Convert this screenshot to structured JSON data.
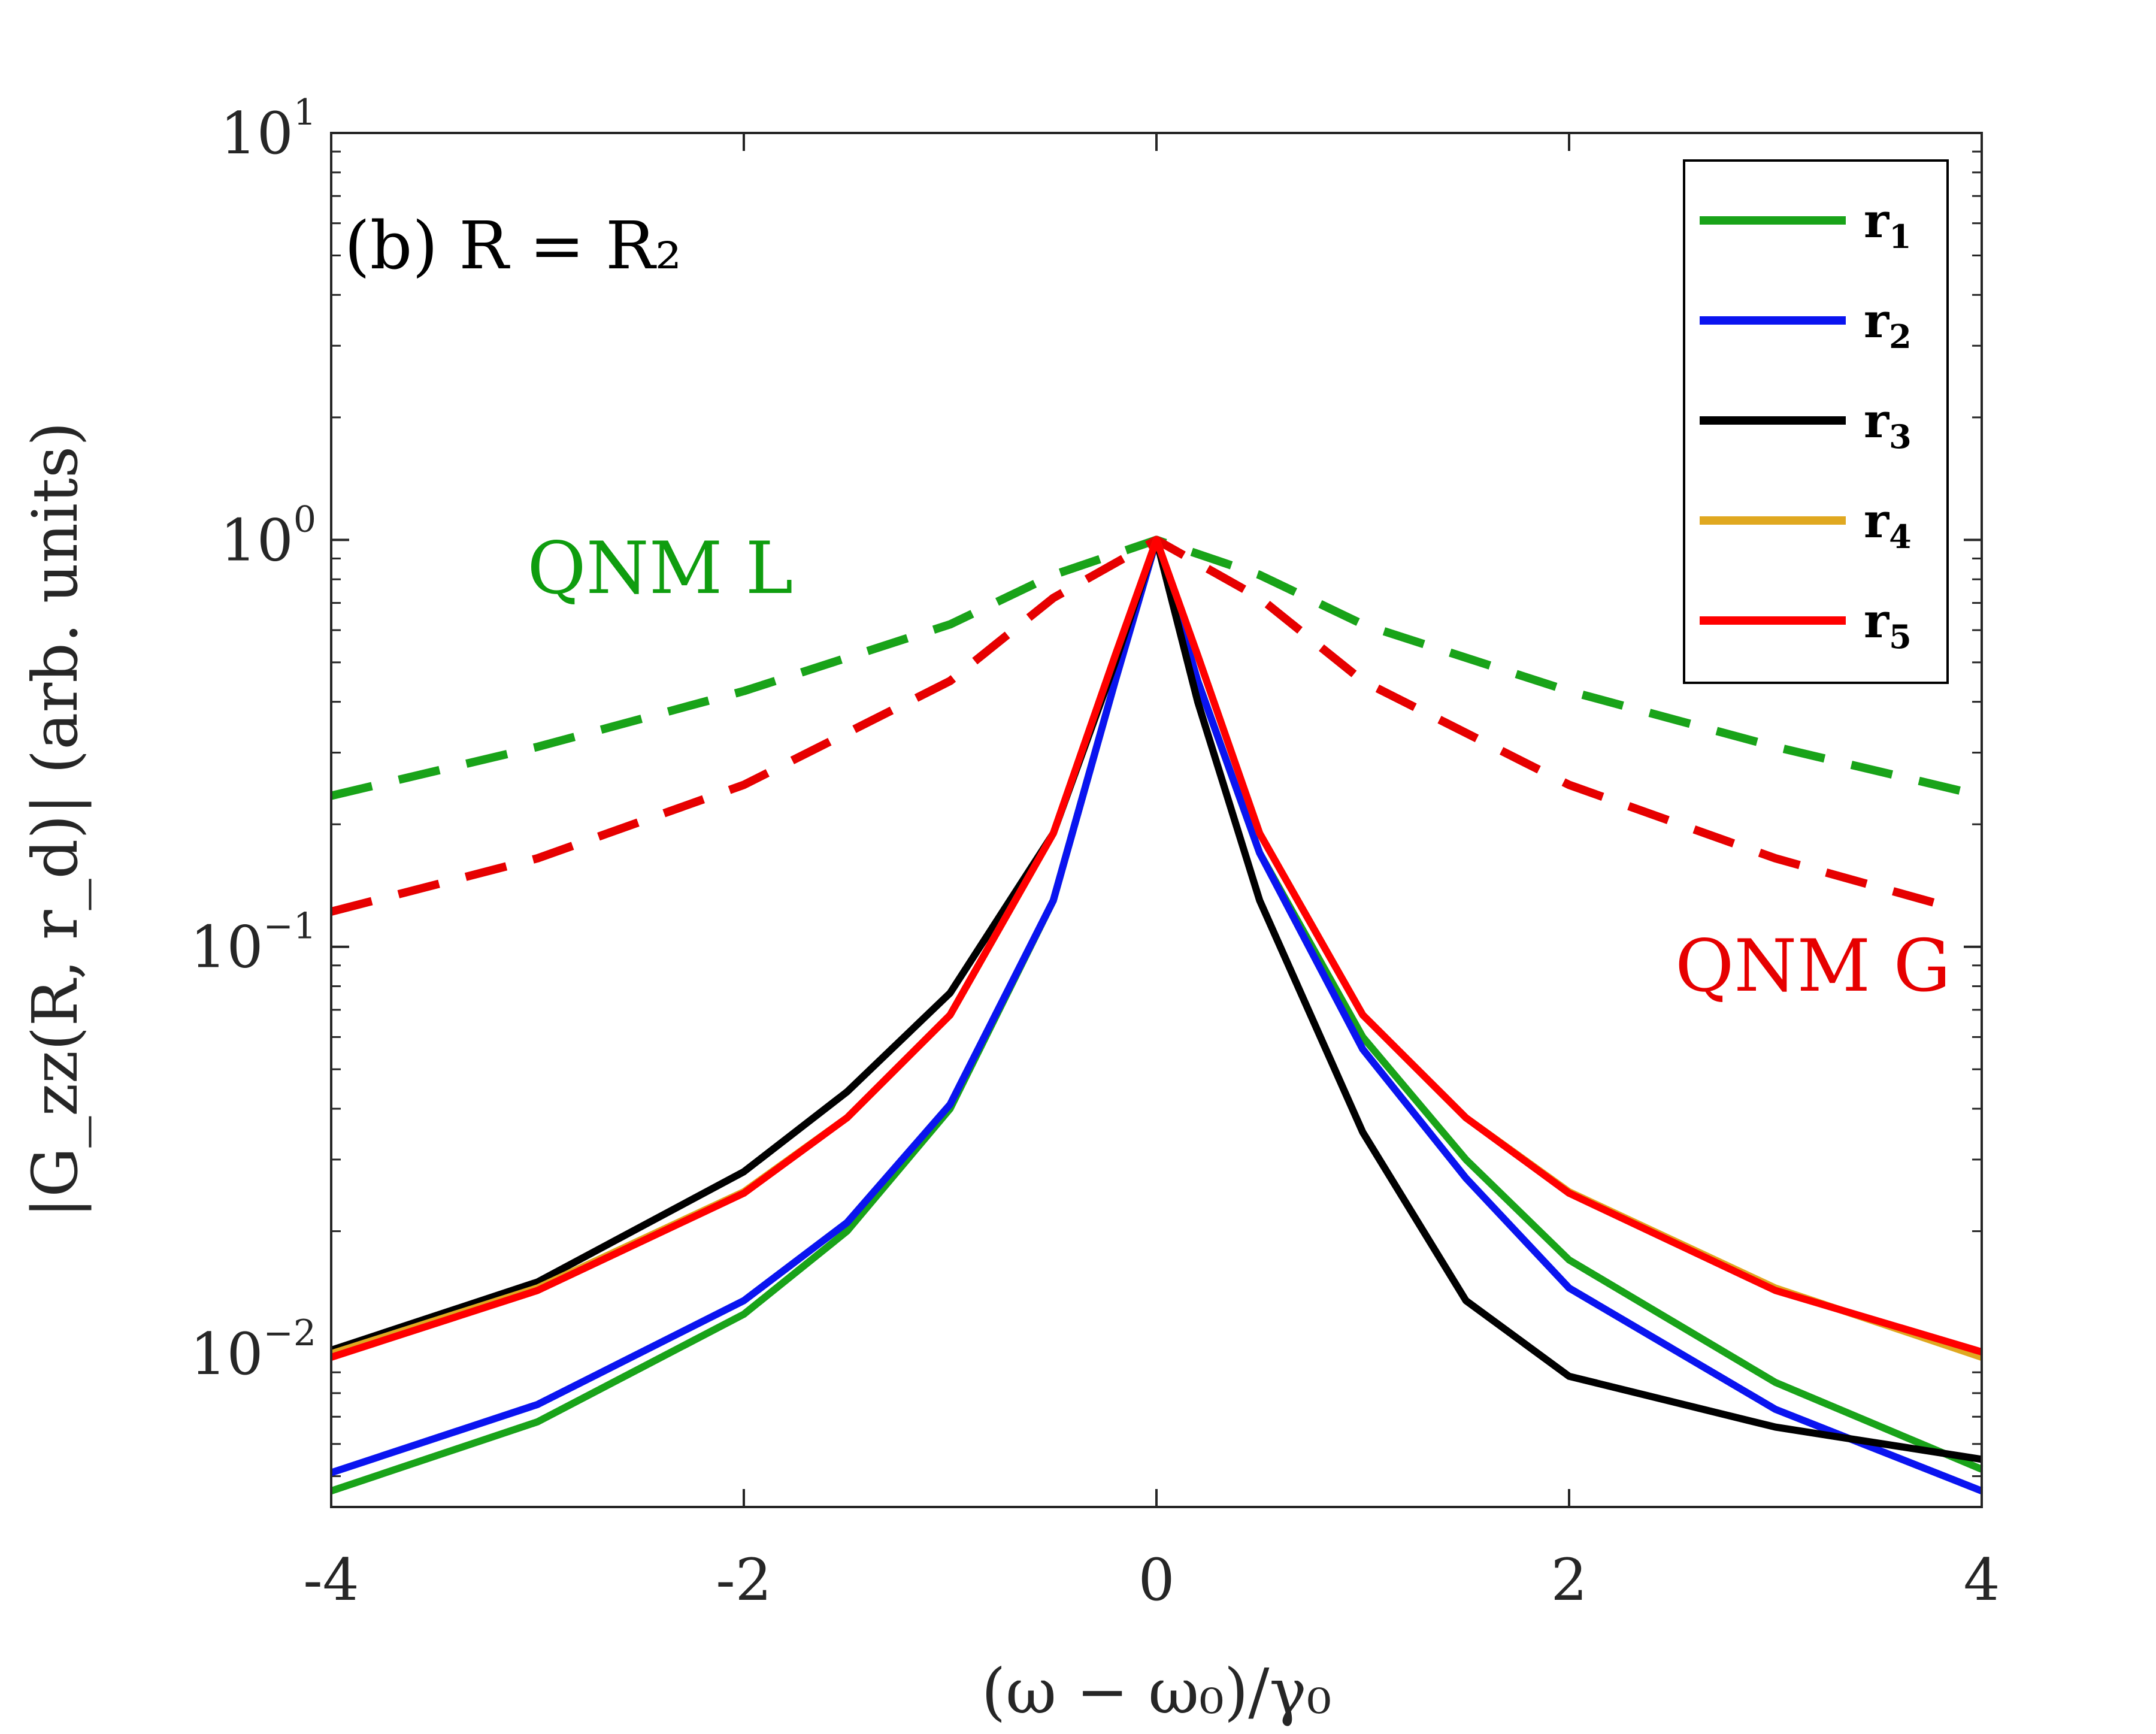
{
  "chart_data": {
    "type": "line",
    "panel_label": "(b) R = R₂",
    "xlabel": "(ω − ω₀)/γ₀",
    "ylabel": "|G_zz(R, r_d)| (arb. units)",
    "xlim": [
      -4,
      4
    ],
    "ylim": [
      0.0042,
      10
    ],
    "yscale": "log",
    "grid": false,
    "legend_position": "top-right",
    "x_ticks": [
      {
        "value": -4,
        "label": "-4"
      },
      {
        "value": -2,
        "label": "-2"
      },
      {
        "value": 0,
        "label": "0"
      },
      {
        "value": 2,
        "label": "2"
      },
      {
        "value": 4,
        "label": "4"
      }
    ],
    "y_ticks": [
      {
        "value": 10,
        "base": "10",
        "exp": "1"
      },
      {
        "value": 1,
        "base": "10",
        "exp": "0"
      },
      {
        "value": 0.1,
        "base": "10",
        "exp": "−1"
      },
      {
        "value": 0.01,
        "base": "10",
        "exp": "−2"
      }
    ],
    "annotations": [
      {
        "text": "QNM L",
        "color": "#0f9d0f",
        "x": -3.05,
        "y": 0.74
      },
      {
        "text": "QNM G",
        "color": "#e60000",
        "x": 3.85,
        "y": 0.078
      }
    ],
    "series": [
      {
        "name": "QNM L",
        "legend": false,
        "style": "dashed",
        "color": "#19a319",
        "x": [
          -4,
          -3,
          -2,
          -1,
          -0.5,
          0,
          0.5,
          1,
          2,
          3,
          4
        ],
        "y": [
          0.235,
          0.31,
          0.425,
          0.62,
          0.82,
          1.0,
          0.82,
          0.62,
          0.425,
          0.31,
          0.235
        ]
      },
      {
        "name": "QNM G",
        "legend": false,
        "style": "dashed",
        "color": "#e60000",
        "x": [
          -4,
          -3,
          -2,
          -1,
          -0.5,
          0,
          0.5,
          1,
          2,
          3,
          3.85
        ],
        "y": [
          0.122,
          0.165,
          0.25,
          0.45,
          0.72,
          1.0,
          0.72,
          0.45,
          0.25,
          0.165,
          0.125
        ]
      },
      {
        "name": "r",
        "sub": "1",
        "legend": true,
        "style": "solid",
        "color": "#19a319",
        "x": [
          -4,
          -3,
          -2,
          -1.5,
          -1,
          -0.5,
          -0.2,
          0,
          0.2,
          0.5,
          1,
          1.5,
          2,
          3,
          4
        ],
        "y": [
          0.0046,
          0.0068,
          0.0125,
          0.02,
          0.04,
          0.13,
          0.45,
          1.0,
          0.45,
          0.17,
          0.06,
          0.03,
          0.017,
          0.0085,
          0.0052
        ]
      },
      {
        "name": "r",
        "sub": "2",
        "legend": true,
        "style": "solid",
        "color": "#0a14f0",
        "x": [
          -4,
          -3,
          -2,
          -1.5,
          -1,
          -0.5,
          -0.2,
          0,
          0.2,
          0.5,
          1,
          1.5,
          2,
          3,
          4
        ],
        "y": [
          0.0051,
          0.0075,
          0.0135,
          0.021,
          0.041,
          0.13,
          0.45,
          1.0,
          0.45,
          0.17,
          0.056,
          0.027,
          0.0145,
          0.0073,
          0.0046
        ]
      },
      {
        "name": "r",
        "sub": "3",
        "legend": true,
        "style": "solid",
        "color": "#000000",
        "x": [
          -4,
          -3,
          -2,
          -1.5,
          -1,
          -0.5,
          -0.2,
          0,
          0.2,
          0.5,
          1,
          1.5,
          2,
          3,
          4
        ],
        "y": [
          0.0102,
          0.015,
          0.028,
          0.044,
          0.077,
          0.19,
          0.5,
          1.0,
          0.4,
          0.13,
          0.035,
          0.0135,
          0.0088,
          0.0066,
          0.0055
        ]
      },
      {
        "name": "r",
        "sub": "4",
        "legend": true,
        "style": "solid",
        "color": "#e0a820",
        "x": [
          -4,
          -3,
          -2,
          -1.5,
          -1,
          -0.5,
          -0.2,
          0,
          0.2,
          0.5,
          1,
          1.5,
          2,
          3,
          4
        ],
        "y": [
          0.01,
          0.0145,
          0.025,
          0.038,
          0.068,
          0.19,
          0.52,
          1.0,
          0.52,
          0.19,
          0.068,
          0.038,
          0.025,
          0.0145,
          0.0098
        ]
      },
      {
        "name": "r",
        "sub": "5",
        "legend": true,
        "style": "solid",
        "color": "#ff0000",
        "x": [
          -4,
          -3,
          -2,
          -1.5,
          -1,
          -0.5,
          -0.2,
          0,
          0.2,
          0.5,
          1,
          1.5,
          2,
          3,
          4
        ],
        "y": [
          0.0098,
          0.0143,
          0.0248,
          0.038,
          0.068,
          0.19,
          0.52,
          1.0,
          0.52,
          0.19,
          0.068,
          0.038,
          0.0248,
          0.0143,
          0.0101
        ]
      }
    ]
  }
}
